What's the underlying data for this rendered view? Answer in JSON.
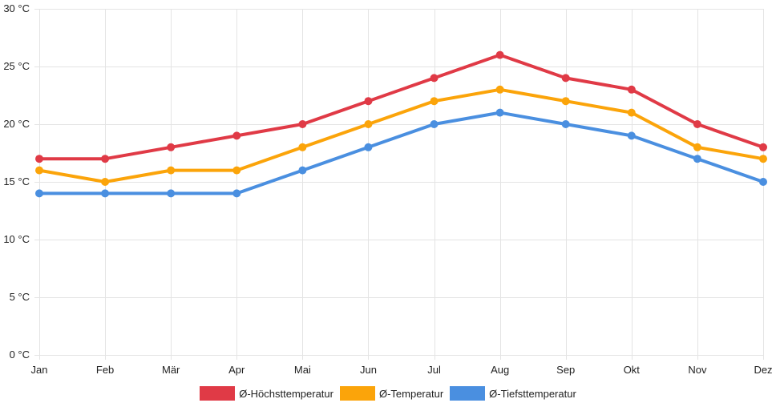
{
  "chart_data": {
    "type": "line",
    "categories": [
      "Jan",
      "Feb",
      "Mär",
      "Apr",
      "Mai",
      "Jun",
      "Jul",
      "Aug",
      "Sep",
      "Okt",
      "Nov",
      "Dez"
    ],
    "ylim": [
      0,
      30
    ],
    "yticks": [
      0,
      5,
      10,
      15,
      20,
      25,
      30
    ],
    "ytick_suffix": " °C",
    "grid": true,
    "legend_position": "bottom",
    "series": [
      {
        "name": "Ø-Höchsttemperatur",
        "color": "#e03a46",
        "values": [
          17,
          17,
          18,
          19,
          20,
          22,
          24,
          26,
          24,
          23,
          20,
          18
        ]
      },
      {
        "name": "Ø-Temperatur",
        "color": "#fba40a",
        "values": [
          16,
          15,
          16,
          16,
          18,
          20,
          22,
          23,
          22,
          21,
          18,
          17
        ]
      },
      {
        "name": "Ø-Tiefsttemperatur",
        "color": "#4a8fe0",
        "values": [
          14,
          14,
          14,
          14,
          16,
          18,
          20,
          21,
          20,
          19,
          17,
          15
        ]
      }
    ]
  }
}
